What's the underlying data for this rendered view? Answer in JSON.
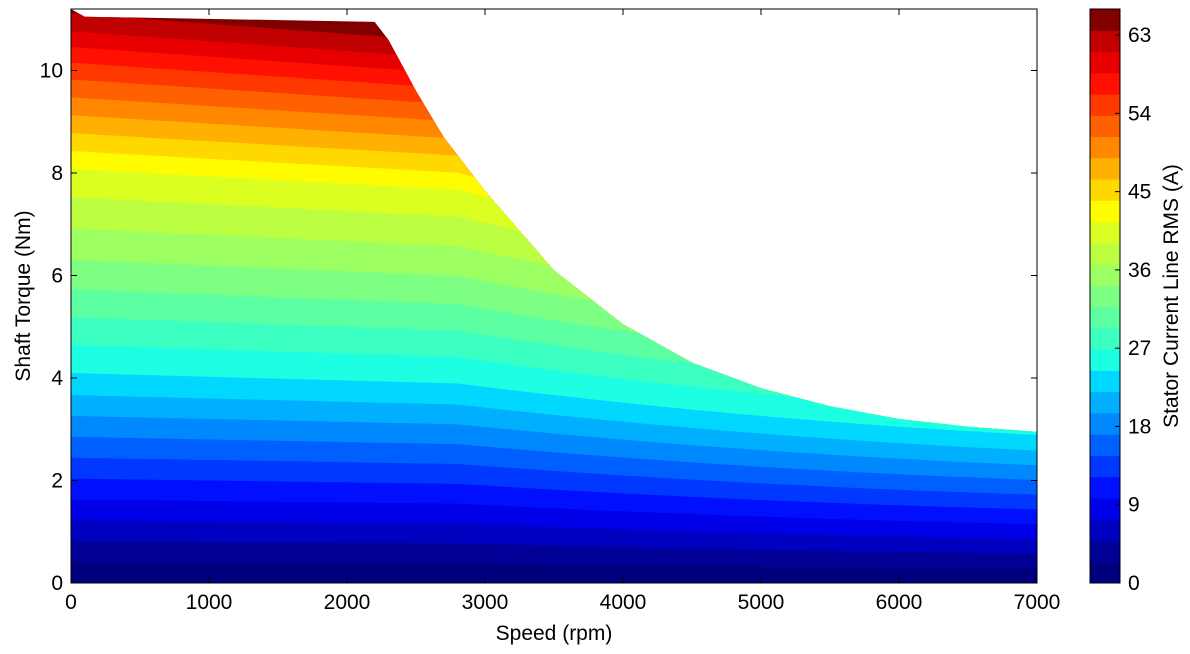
{
  "chart_data": {
    "type": "heatmap",
    "subtype": "filled-contour",
    "title": "",
    "xlabel": "Speed  (rpm)",
    "ylabel": "Shaft Torque  (Nm)",
    "xlim": [
      0,
      7000
    ],
    "ylim": [
      0,
      11.2
    ],
    "xticks": [
      0,
      1000,
      2000,
      3000,
      4000,
      5000,
      6000,
      7000
    ],
    "yticks": [
      0,
      2,
      4,
      6,
      8,
      10
    ],
    "grid": false,
    "colorbar": {
      "label": "Stator Current Line RMS (A)",
      "range": [
        0,
        66
      ],
      "ticks": [
        0,
        9,
        18,
        27,
        36,
        45,
        54,
        63
      ],
      "colormap": "jet",
      "levels": 22,
      "colors": [
        "#00007f",
        "#000097",
        "#0000c0",
        "#0000e8",
        "#0010ff",
        "#0038ff",
        "#0060ff",
        "#0088ff",
        "#00b0ff",
        "#00d8ff",
        "#1cffe2",
        "#3cffc2",
        "#5cffa2",
        "#7cff82",
        "#9cff62",
        "#bcff42",
        "#dcff22",
        "#fffc00",
        "#ffd800",
        "#ffb000",
        "#ff8800",
        "#ff6000",
        "#ff3800",
        "#ff1000",
        "#e80000",
        "#c00000",
        "#800000"
      ]
    },
    "operating_envelope": {
      "description": "torque-speed boundary of the contour region",
      "speed": [
        0,
        100,
        2200,
        2300,
        2500,
        2700,
        3000,
        3500,
        4000,
        4500,
        5000,
        5500,
        6000,
        6500,
        7000
      ],
      "torque_max": [
        11.2,
        11.05,
        10.95,
        10.6,
        9.6,
        8.7,
        7.65,
        6.1,
        5.05,
        4.3,
        3.8,
        3.45,
        3.2,
        3.05,
        2.95
      ]
    },
    "current_vs_torque_low_speed": {
      "torque": [
        0,
        2,
        4,
        6,
        8,
        10,
        11
      ],
      "current_A": [
        0,
        12,
        24,
        33,
        41,
        55,
        63
      ]
    }
  }
}
